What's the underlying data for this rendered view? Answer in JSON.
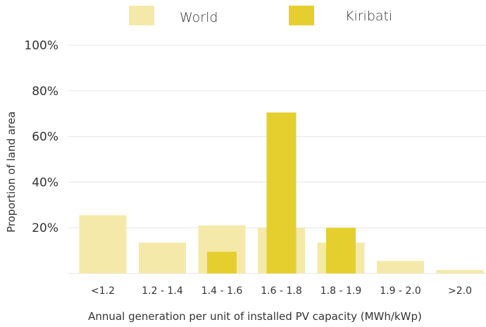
{
  "chart_data": {
    "type": "bar",
    "title": "",
    "xlabel": "Annual generation per unit of installed PV capacity (MWh/kWp)",
    "ylabel": "Proportion of land area",
    "categories": [
      "<1.2",
      "1.2 - 1.4",
      "1.4 - 1.6",
      "1.6 - 1.8",
      "1.8 - 1.9",
      "1.9 - 2.0",
      ">2.0"
    ],
    "series": [
      {
        "name": "World",
        "color": "#f4e9a9",
        "values": [
          25.5,
          13.5,
          21,
          20,
          13.5,
          5.5,
          1.5
        ]
      },
      {
        "name": "Kiribati",
        "color": "#e5cf2f",
        "values": [
          0,
          0,
          9.5,
          70.5,
          20,
          0,
          0
        ]
      }
    ],
    "ylim": [
      0,
      100
    ],
    "yticks": [
      20,
      40,
      60,
      80,
      100
    ],
    "ytick_labels": [
      "20%",
      "40%",
      "60%",
      "80%",
      "100%"
    ],
    "grid": true,
    "legend_position": "top"
  }
}
